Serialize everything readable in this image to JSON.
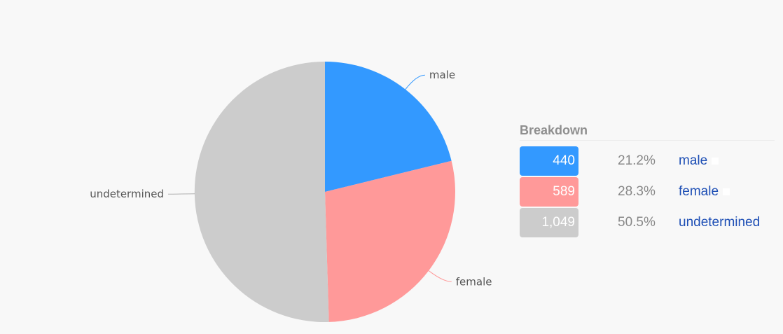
{
  "chart_data": {
    "type": "pie",
    "slices": [
      {
        "label": "male",
        "value": 440,
        "count_display": "440",
        "percent": "21.2%",
        "color": "#3399ff"
      },
      {
        "label": "female",
        "value": 589,
        "count_display": "589",
        "percent": "28.3%",
        "color": "#ff9999"
      },
      {
        "label": "undetermined",
        "value": 1049,
        "count_display": "1,049",
        "percent": "50.5%",
        "color": "#cccccc"
      }
    ]
  },
  "breakdown": {
    "title": "Breakdown"
  }
}
